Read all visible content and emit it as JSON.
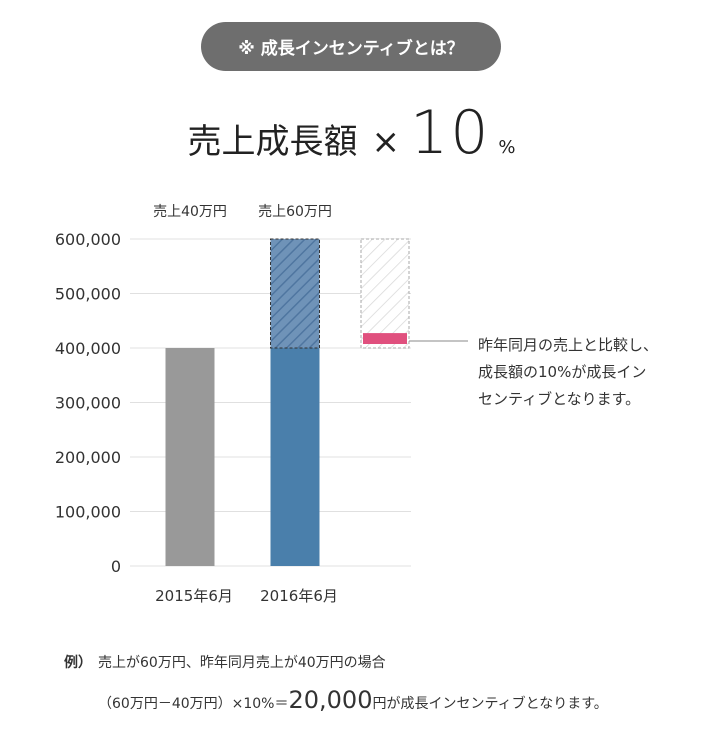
{
  "pill": {
    "text": "※ 成長インセンティブとは？"
  },
  "formula": {
    "label": "売上成長額",
    "times": "×",
    "number": "10",
    "unit": "%"
  },
  "chart_data": {
    "type": "bar",
    "categories": [
      "2015年6月",
      "2016年6月"
    ],
    "values": [
      400000,
      600000
    ],
    "base_2016": 400000,
    "growth_2016": 200000,
    "incentive": 20000,
    "top_labels": [
      "売上40万円",
      "売上60万円"
    ],
    "yticks": [
      "0",
      "100,000",
      "200,000",
      "300,000",
      "400,000",
      "500,000",
      "600,000"
    ],
    "ylim": [
      0,
      600000
    ],
    "grid": true,
    "colors": {
      "bar_2015": "#999999",
      "bar_2016": "#4a7fab",
      "growth_hatch": "#6f93b8",
      "incentive": "#e0507e"
    }
  },
  "annotation": {
    "lines": [
      "昨年同月の売上と比較し、",
      "成長額の10%が成長イン",
      "センティブとなります。"
    ]
  },
  "example": {
    "label": "例）",
    "text": "売上が60万円、昨年同月売上が40万円の場合",
    "calc_prefix": "（60万円－40万円）×10%＝",
    "calc_big": "20,000",
    "calc_suffix": "円が成長インセンティブとなります。"
  }
}
